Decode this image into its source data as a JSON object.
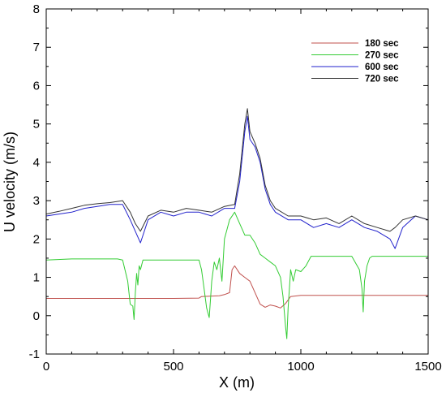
{
  "chart_data": {
    "type": "line",
    "title": "",
    "xlabel": "X (m)",
    "ylabel": "U velocity (m/s)",
    "xlim": [
      0,
      1500
    ],
    "ylim": [
      -1,
      8
    ],
    "x_ticks": [
      0,
      500,
      1000,
      1500
    ],
    "y_ticks": [
      -1,
      0,
      1,
      2,
      3,
      4,
      5,
      6,
      7,
      8
    ],
    "grid": false,
    "legend_position": "top-right",
    "series": [
      {
        "name": "180 sec",
        "color": "#c0504d",
        "x": [
          0,
          100,
          200,
          300,
          400,
          500,
          600,
          610,
          680,
          700,
          720,
          730,
          740,
          760,
          780,
          800,
          820,
          840,
          860,
          880,
          900,
          920,
          940,
          960,
          1000,
          1100,
          1200,
          1300,
          1400,
          1500
        ],
        "y": [
          0.45,
          0.45,
          0.45,
          0.45,
          0.45,
          0.45,
          0.46,
          0.5,
          0.52,
          0.55,
          0.6,
          1.2,
          1.3,
          1.1,
          1.0,
          0.9,
          0.6,
          0.3,
          0.22,
          0.28,
          0.25,
          0.2,
          0.32,
          0.5,
          0.53,
          0.53,
          0.53,
          0.53,
          0.53,
          0.53
        ]
      },
      {
        "name": "270 sec",
        "color": "#33cc33",
        "x": [
          0,
          100,
          200,
          280,
          300,
          320,
          330,
          340,
          345,
          350,
          355,
          360,
          365,
          370,
          380,
          400,
          500,
          600,
          610,
          620,
          630,
          640,
          645,
          650,
          660,
          670,
          680,
          690,
          700,
          720,
          740,
          760,
          780,
          800,
          820,
          840,
          860,
          880,
          900,
          920,
          930,
          940,
          945,
          950,
          960,
          970,
          980,
          1000,
          1020,
          1040,
          1100,
          1200,
          1230,
          1240,
          1245,
          1250,
          1260,
          1270,
          1280,
          1300,
          1400,
          1500
        ],
        "y": [
          1.45,
          1.48,
          1.48,
          1.48,
          1.45,
          0.9,
          0.3,
          0.25,
          -0.1,
          0.6,
          1.1,
          0.8,
          1.3,
          1.2,
          1.45,
          1.45,
          1.45,
          1.45,
          1.2,
          0.7,
          0.2,
          -0.05,
          0.4,
          0.9,
          1.4,
          1.2,
          1.5,
          0.9,
          2.0,
          2.5,
          2.7,
          2.4,
          2.1,
          2.1,
          1.9,
          1.6,
          1.5,
          1.4,
          1.3,
          1.0,
          0.5,
          -0.3,
          -0.6,
          0.2,
          1.2,
          0.9,
          1.2,
          1.15,
          1.3,
          1.55,
          1.55,
          1.55,
          1.2,
          0.7,
          0.1,
          0.9,
          1.3,
          1.5,
          1.55,
          1.55,
          1.55,
          1.55
        ]
      },
      {
        "name": "600 sec",
        "color": "#2222cc",
        "x": [
          0,
          50,
          100,
          150,
          200,
          250,
          300,
          330,
          350,
          370,
          400,
          450,
          500,
          550,
          600,
          650,
          700,
          740,
          760,
          780,
          790,
          800,
          820,
          840,
          860,
          880,
          900,
          950,
          1000,
          1050,
          1100,
          1150,
          1200,
          1250,
          1300,
          1350,
          1370,
          1400,
          1450,
          1500
        ],
        "y": [
          2.6,
          2.65,
          2.7,
          2.8,
          2.85,
          2.9,
          2.9,
          2.5,
          2.2,
          1.9,
          2.5,
          2.7,
          2.6,
          2.7,
          2.7,
          2.6,
          2.8,
          2.8,
          3.5,
          4.8,
          5.2,
          4.6,
          4.4,
          4.0,
          3.3,
          2.9,
          2.7,
          2.5,
          2.5,
          2.3,
          2.4,
          2.3,
          2.5,
          2.3,
          2.2,
          2.0,
          1.75,
          2.3,
          2.6,
          2.5
        ]
      },
      {
        "name": "720 sec",
        "color": "#333333",
        "x": [
          0,
          50,
          100,
          150,
          200,
          250,
          300,
          330,
          350,
          370,
          400,
          450,
          500,
          550,
          600,
          650,
          700,
          740,
          760,
          780,
          790,
          800,
          820,
          840,
          860,
          880,
          900,
          950,
          1000,
          1050,
          1100,
          1150,
          1200,
          1250,
          1300,
          1350,
          1370,
          1400,
          1450,
          1500
        ],
        "y": [
          2.65,
          2.72,
          2.8,
          2.88,
          2.92,
          2.95,
          3.0,
          2.7,
          2.4,
          2.2,
          2.6,
          2.75,
          2.7,
          2.8,
          2.75,
          2.7,
          2.85,
          2.9,
          3.7,
          5.0,
          5.4,
          4.8,
          4.5,
          4.1,
          3.4,
          3.0,
          2.8,
          2.6,
          2.6,
          2.5,
          2.55,
          2.4,
          2.6,
          2.4,
          2.3,
          2.2,
          2.3,
          2.5,
          2.6,
          2.5
        ]
      }
    ]
  }
}
